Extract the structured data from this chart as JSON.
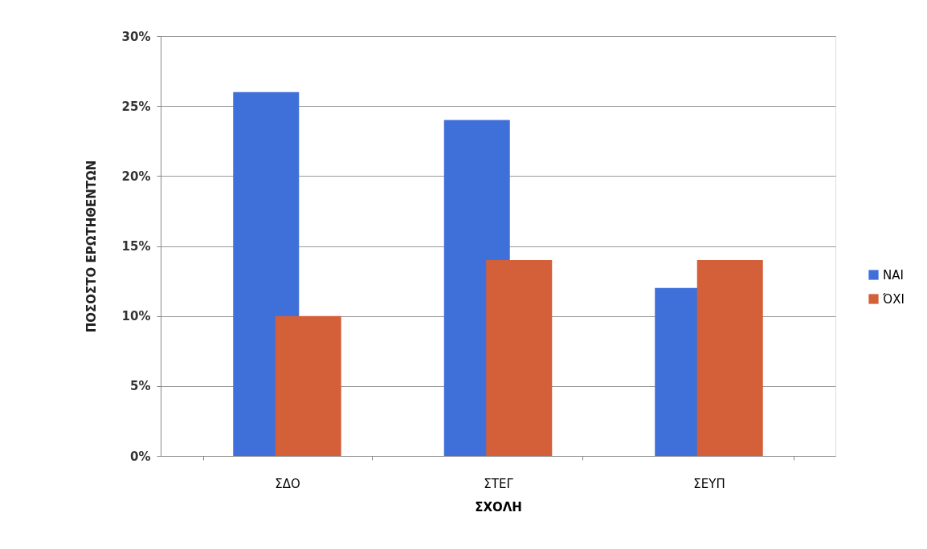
{
  "chart_data": {
    "type": "bar",
    "xlabel": "ΣΧΟΛΗ",
    "ylabel": "ΠΟΣΟΣΤΟ ΕΡΩΤΗΘΕΝΤΩΝ",
    "categories": [
      "ΣΔΟ",
      "ΣΤΕΓ",
      "ΣΕΥΠ"
    ],
    "series": [
      {
        "name": "ΝΑΙ",
        "color": "#3f6fd8",
        "values": [
          26,
          24,
          12
        ]
      },
      {
        "name": "ΌΧΙ",
        "color": "#d4603a",
        "values": [
          10,
          14,
          14
        ]
      }
    ],
    "ylim": [
      0,
      30
    ],
    "yticks": [
      {
        "value": 0,
        "label": "0%"
      },
      {
        "value": 5,
        "label": "5%"
      },
      {
        "value": 10,
        "label": "10%"
      },
      {
        "value": 15,
        "label": "15%"
      },
      {
        "value": 20,
        "label": "20%"
      },
      {
        "value": 25,
        "label": "25%"
      },
      {
        "value": 30,
        "label": "30%"
      }
    ],
    "grid": "y",
    "legend": "right"
  }
}
